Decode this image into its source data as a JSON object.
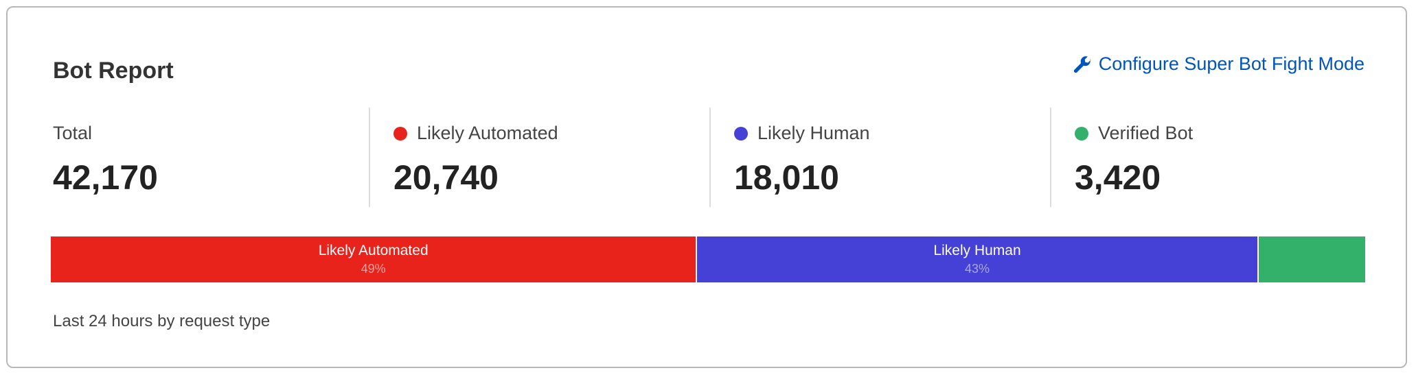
{
  "header": {
    "title": "Bot Report",
    "configure_link": "Configure Super Bot Fight Mode",
    "configure_icon": "wrench-icon"
  },
  "stats": [
    {
      "label": "Total",
      "value": "42,170"
    },
    {
      "label": "Likely Automated",
      "value": "20,740",
      "color": "#e8231c"
    },
    {
      "label": "Likely Human",
      "value": "18,010",
      "color": "#4540d6"
    },
    {
      "label": "Verified Bot",
      "value": "3,420",
      "color": "#33b16a"
    }
  ],
  "chart_data": {
    "type": "bar",
    "orientation": "horizontal-stacked-100",
    "categories": [
      "Likely Automated",
      "Likely Human",
      "Verified Bot"
    ],
    "values": [
      20740,
      18010,
      3420
    ],
    "percent_labels": [
      "49%",
      "43%",
      ""
    ],
    "colors": [
      "#e8231c",
      "#4540d6",
      "#33b16a"
    ]
  },
  "footer": {
    "caption": "Last 24 hours by request type"
  }
}
